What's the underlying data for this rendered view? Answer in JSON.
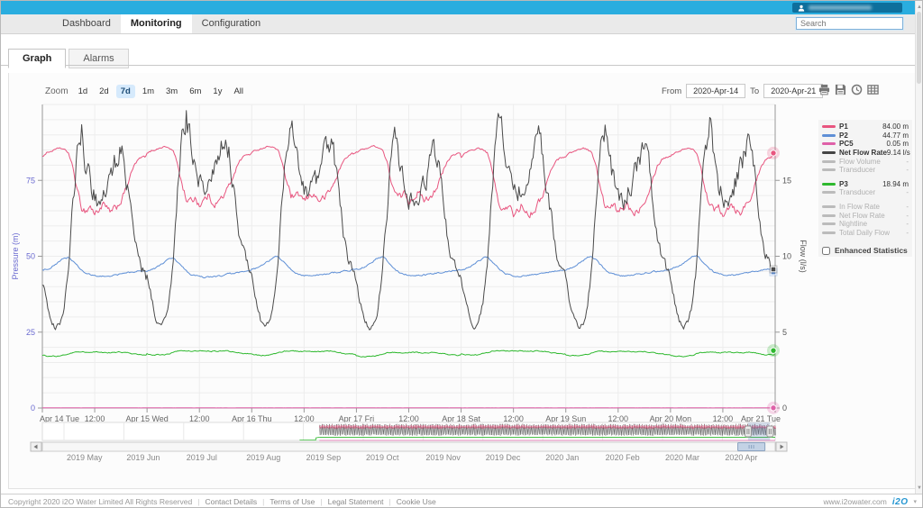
{
  "topbar": {
    "brand_color": "#2aaddf"
  },
  "nav_tabs": [
    {
      "label": "Dashboard",
      "active": false
    },
    {
      "label": "Monitoring",
      "active": true
    },
    {
      "label": "Configuration",
      "active": false
    }
  ],
  "search": {
    "placeholder": "Search"
  },
  "sub_tabs": [
    {
      "label": "Graph",
      "active": true
    },
    {
      "label": "Alarms",
      "active": false
    }
  ],
  "toolbar": {
    "zoom_label": "Zoom",
    "zoom_buttons": [
      "1d",
      "2d",
      "7d",
      "1m",
      "3m",
      "6m",
      "1y",
      "All"
    ],
    "zoom_selected": "7d",
    "from_label": "From",
    "from_value": "2020-Apr-14",
    "to_label": "To",
    "to_value": "2020-Apr-21",
    "icons": [
      "print",
      "save",
      "history",
      "data-table"
    ]
  },
  "legend": {
    "groups": [
      {
        "items": [
          {
            "name": "P1",
            "color": "#e8557f",
            "value": "84.00 m",
            "disabled": false
          },
          {
            "name": "P2",
            "color": "#5e8fd6",
            "value": "44.77 m",
            "disabled": false
          },
          {
            "name": "PC5",
            "color": "#df60a8",
            "value": "0.05 m",
            "disabled": false
          },
          {
            "name": "Net Flow Rate",
            "color": "#444444",
            "value": "9.14 l/s",
            "disabled": false
          },
          {
            "name": "Flow Volume",
            "color": "#bbbbbb",
            "value": "-",
            "disabled": true
          },
          {
            "name": "Transducer",
            "color": "#bbbbbb",
            "value": "-",
            "disabled": true
          }
        ]
      },
      {
        "items": [
          {
            "name": "P3",
            "color": "#2eb82e",
            "value": "18.94 m",
            "disabled": false
          },
          {
            "name": "Transducer",
            "color": "#bbbbbb",
            "value": "-",
            "disabled": true
          }
        ]
      },
      {
        "items": [
          {
            "name": "In Flow Rate",
            "color": "#bbbbbb",
            "value": "-",
            "disabled": true
          },
          {
            "name": "Net Flow Rate",
            "color": "#bbbbbb",
            "value": "-",
            "disabled": true
          },
          {
            "name": "Nightline",
            "color": "#bbbbbb",
            "value": "-",
            "disabled": true
          },
          {
            "name": "Total Daily Flow",
            "color": "#bbbbbb",
            "value": "-",
            "disabled": true
          }
        ]
      }
    ],
    "enhanced_label": "Enhanced Statistics"
  },
  "chart_data": {
    "type": "line",
    "title": "",
    "x_axis": {
      "days": 7,
      "labels": [
        "Apr 14 Tue",
        "12:00",
        "Apr 15 Wed",
        "12:00",
        "Apr 16 Thu",
        "12:00",
        "Apr 17 Fri",
        "12:00",
        "Apr 18 Sat",
        "12:00",
        "Apr 19 Sun",
        "12:00",
        "Apr 20 Mon",
        "12:00",
        "Apr 21 Tue"
      ]
    },
    "y_left": {
      "title": "Pressure (m)",
      "min": 0,
      "max": 100,
      "ticks": [
        0,
        25,
        50,
        75
      ],
      "color": "#6a6ad0",
      "minor_step": 5
    },
    "y_right": {
      "title": "Flow (l/s)",
      "min": 0,
      "max": 20,
      "ticks": [
        0,
        5,
        10,
        15
      ],
      "color": "#555555"
    },
    "series": [
      {
        "name": "P1",
        "axis": "left",
        "color": "#e8557f",
        "end_value": 84.0,
        "unit": "m",
        "daily_pattern": [
          83.5,
          84.5,
          85,
          85.5,
          86,
          85.5,
          84.5,
          80,
          73,
          68,
          67,
          68.5,
          66,
          67.5,
          69,
          67,
          66.5,
          68,
          70,
          73,
          77,
          80.5,
          82.5,
          83.2
        ],
        "noise": 2.4,
        "noise_bias": "low",
        "day_var": 2.5,
        "marker": "circle"
      },
      {
        "name": "P2",
        "axis": "left",
        "color": "#5e8fd6",
        "end_value": 44.77,
        "unit": "m",
        "daily_pattern": [
          45.5,
          46,
          46.5,
          47.5,
          48.5,
          49.5,
          49.8,
          48.5,
          47,
          45.5,
          44.5,
          44,
          43.7,
          43.5,
          43.5,
          43.6,
          43.8,
          44,
          44.3,
          44.6,
          44.8,
          45,
          45.2,
          45.4
        ],
        "noise": 0.55,
        "noise_bias": "flat",
        "day_var": 0.6,
        "marker": "square"
      },
      {
        "name": "PC5",
        "axis": "left",
        "color": "#df60a8",
        "end_value": 0.05,
        "unit": "m",
        "daily_pattern": [
          0.05,
          0.05,
          0.05,
          0.05,
          0.05,
          0.05,
          0.05,
          0.05,
          0.05,
          0.05,
          0.05,
          0.05,
          0.05,
          0.05,
          0.05,
          0.05,
          0.05,
          0.05,
          0.05,
          0.05,
          0.05,
          0.05,
          0.05,
          0.05
        ],
        "noise": 0.02,
        "noise_bias": "flat",
        "day_var": 0,
        "marker": "circle"
      },
      {
        "name": "Net Flow Rate",
        "axis": "right",
        "color": "#4a4a4a",
        "end_value": 9.14,
        "unit": "l/s",
        "daily_pattern": [
          8.5,
          7,
          5.8,
          5.3,
          5.6,
          6.8,
          9.5,
          13.5,
          17,
          18.5,
          16.5,
          15,
          14.2,
          13.8,
          14.3,
          15,
          15.8,
          16.8,
          17.5,
          16,
          13.5,
          11.5,
          10,
          9.2
        ],
        "noise": 1.7,
        "noise_bias": "high",
        "day_var": 1.2,
        "marker": "square"
      },
      {
        "name": "P3",
        "axis": "left",
        "color": "#2eb82e",
        "end_value": 18.94,
        "unit": "m",
        "daily_pattern": [
          17.5,
          17.3,
          17.2,
          17.2,
          17.3,
          17.6,
          18,
          18.4,
          18.6,
          18.6,
          18.5,
          18.4,
          18.5,
          18.6,
          18.5,
          18.4,
          18.4,
          18.5,
          18.6,
          18.4,
          18.2,
          17.9,
          17.7,
          17.6
        ],
        "noise": 0.35,
        "noise_bias": "flat",
        "day_var": 0.4,
        "marker": "circle"
      }
    ],
    "navigator": {
      "months": [
        "2019 May",
        "2019 Jun",
        "2019 Jul",
        "2019 Aug",
        "2019 Sep",
        "2019 Oct",
        "2019 Nov",
        "2019 Dec",
        "2020 Jan",
        "2020 Feb",
        "2020 Mar",
        "2020 Apr"
      ],
      "data_start_frac": 0.378,
      "green_lead_frac": 0.351,
      "selection": {
        "start_frac": 0.963,
        "end_frac": 0.993
      },
      "band": {
        "pressure_low": 64,
        "pressure_high": 87,
        "flow_low": 5.3,
        "flow_high": 18.5,
        "p3_level": 18,
        "pc5_level": 0.1
      }
    }
  },
  "footer": {
    "copyright": "Copyright 2020 i2O Water Limited All Rights Reserved",
    "links": [
      "Contact Details",
      "Terms of Use",
      "Legal Statement",
      "Cookie Use"
    ],
    "website": "www.i2owater.com",
    "logo": "i2O",
    "caret": "▾"
  }
}
